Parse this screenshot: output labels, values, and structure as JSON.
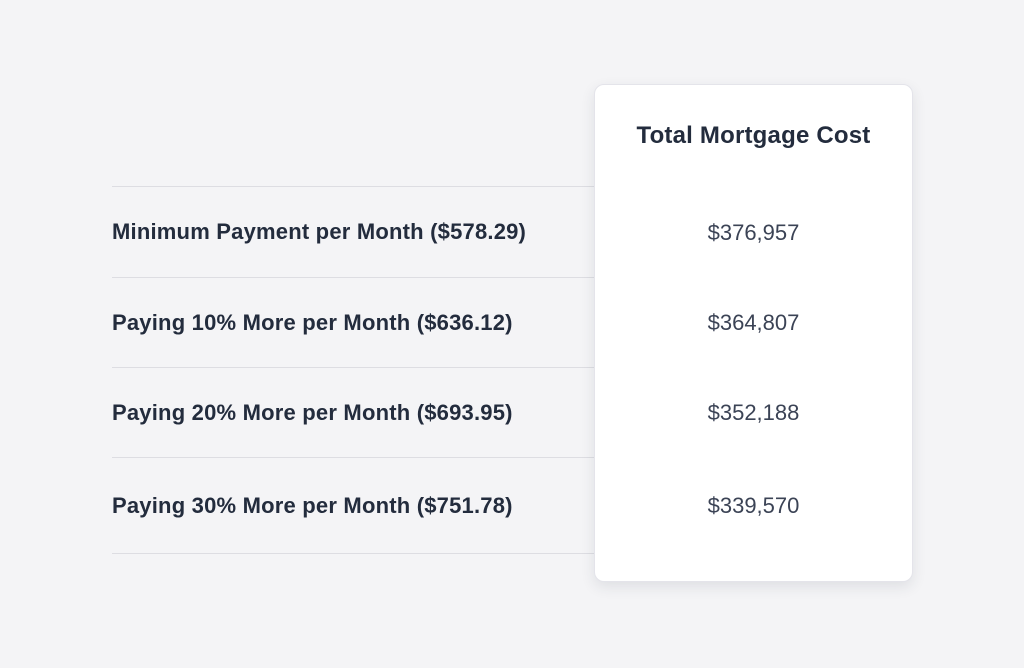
{
  "table": {
    "column_header": "Total Mortgage Cost",
    "rows": [
      {
        "label": "Minimum Payment per Month ($578.29)",
        "total_cost": "$376,957"
      },
      {
        "label": "Paying 10% More per Month ($636.12)",
        "total_cost": "$364,807"
      },
      {
        "label": "Paying 20% More per Month ($693.95)",
        "total_cost": "$352,188"
      },
      {
        "label": "Paying 30% More per Month ($751.78)",
        "total_cost": "$339,570"
      }
    ]
  },
  "colors": {
    "page_background": "#f4f4f6",
    "divider": "#dddde2",
    "label_text": "#232c3d",
    "value_text": "#3b4355",
    "card_background": "#ffffff",
    "card_border": "#e4e4ea"
  }
}
